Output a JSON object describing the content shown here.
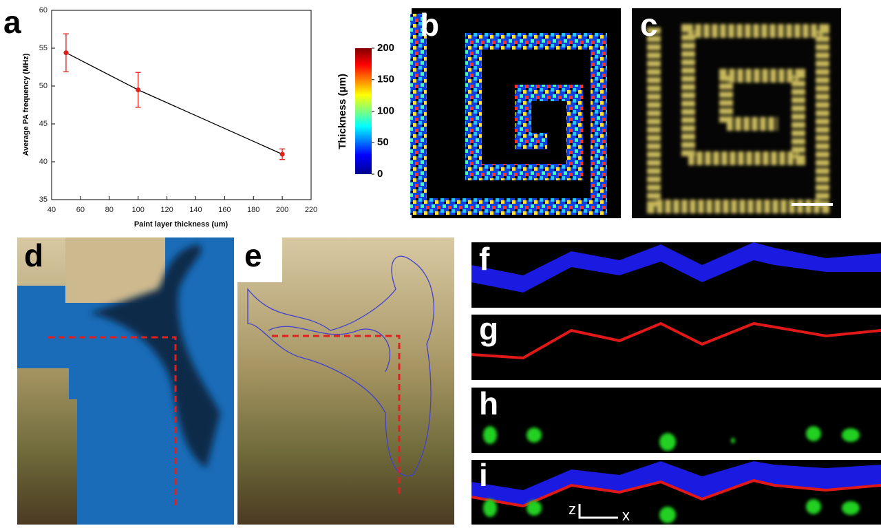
{
  "chart_data": {
    "type": "line",
    "xlabel": "Paint layer thickness (um)",
    "ylabel": "Average PA frequency (MHz)",
    "x": [
      50,
      100,
      200
    ],
    "values": [
      54.4,
      49.5,
      41.0
    ],
    "errors": [
      2.5,
      2.3,
      0.7
    ],
    "color": "#e0201c",
    "line_color": "#000000",
    "xlim": [
      40,
      220
    ],
    "xticks": [
      40,
      60,
      80,
      100,
      120,
      140,
      160,
      180,
      200,
      220
    ],
    "ylim": [
      35,
      60
    ],
    "yticks": [
      35,
      40,
      45,
      50,
      55,
      60
    ]
  },
  "colorbar": {
    "label": "Thickness (μm)",
    "lim": [
      0,
      200
    ],
    "ticks": [
      0,
      50,
      100,
      150,
      200
    ]
  },
  "panel_labels": [
    "a",
    "b",
    "c",
    "d",
    "e",
    "f",
    "g",
    "h",
    "i"
  ],
  "scale_bar": {
    "z": "z",
    "x": "x"
  }
}
